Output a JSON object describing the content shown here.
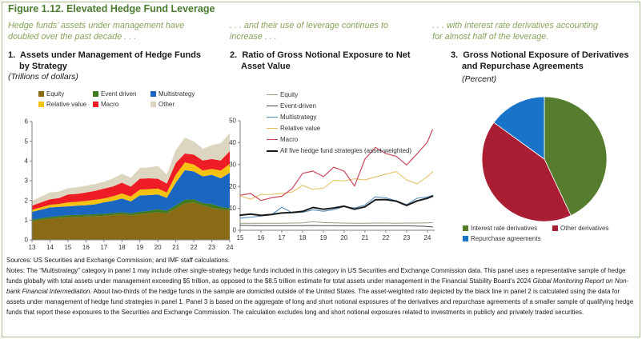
{
  "figure": {
    "title": "Figure 1.12. Elevated Hedge Fund Leverage",
    "accent_color": "#4a7c2f",
    "subtitle_color": "#87a35b",
    "border_color": "#a9bf8e"
  },
  "panels": [
    {
      "subtitle1": "Hedge funds’ assets under management have",
      "subtitle2": "doubled over the past decade . . .",
      "number": "1.",
      "heading1": "Assets under Management of Hedge Funds",
      "heading2": "by Strategy",
      "unit": "(Trillions of dollars)"
    },
    {
      "subtitle1": ". . . and their use of leverage continues to",
      "subtitle2": "increase . . .",
      "number": "2.",
      "heading1": "Ratio of Gross Notional Exposure to Net",
      "heading2": "Asset Value",
      "unit": ""
    },
    {
      "subtitle1": ". . . with interest rate derivatives accounting",
      "subtitle2": "for almost half of the leverage.",
      "number": "3.",
      "heading1": "Gross Notional Exposure of Derivatives",
      "heading2": "and Repurchase Agreements",
      "unit": "(Percent)"
    }
  ],
  "chart_data": [
    {
      "type": "area",
      "stacked": true,
      "title": "Assets under Management of Hedge Funds by Strategy",
      "ylabel": "Trillions of dollars",
      "ylim": [
        0,
        6
      ],
      "yticks": [
        0,
        1,
        2,
        3,
        4,
        5,
        6
      ],
      "xlim": [
        2013,
        2024
      ],
      "xticks": [
        2013,
        2014,
        2015,
        2016,
        2017,
        2018,
        2019,
        2020,
        2021,
        2022,
        2023,
        2024
      ],
      "xtick_labels": [
        "13",
        "14",
        "15",
        "16",
        "17",
        "18",
        "19",
        "20",
        "21",
        "22",
        "23",
        "24"
      ],
      "x": [
        2013,
        2013.5,
        2014,
        2014.5,
        2015,
        2015.5,
        2016,
        2016.5,
        2017,
        2017.5,
        2018,
        2018.5,
        2019,
        2019.5,
        2020,
        2020.5,
        2021,
        2021.5,
        2022,
        2022.5,
        2023,
        2023.5,
        2024
      ],
      "series": [
        {
          "name": "Equity",
          "color": "#8a6b15",
          "values": [
            0.95,
            1.02,
            1.08,
            1.12,
            1.15,
            1.17,
            1.18,
            1.2,
            1.22,
            1.26,
            1.3,
            1.25,
            1.3,
            1.35,
            1.4,
            1.35,
            1.6,
            1.85,
            1.9,
            1.75,
            1.62,
            1.55,
            1.5
          ]
        },
        {
          "name": "Event driven",
          "color": "#3f7a1e",
          "values": [
            0.07,
            0.08,
            0.08,
            0.09,
            0.1,
            0.1,
            0.1,
            0.1,
            0.1,
            0.1,
            0.1,
            0.1,
            0.12,
            0.12,
            0.15,
            0.13,
            0.15,
            0.18,
            0.15,
            0.12,
            0.2,
            0.12,
            0.1
          ]
        },
        {
          "name": "Multistrategy",
          "color": "#1a66c0",
          "values": [
            0.4,
            0.43,
            0.48,
            0.46,
            0.45,
            0.46,
            0.47,
            0.5,
            0.58,
            0.62,
            0.7,
            0.6,
            0.83,
            0.8,
            0.75,
            0.65,
            1.15,
            1.5,
            1.42,
            1.35,
            1.48,
            1.45,
            1.8
          ]
        },
        {
          "name": "Relative value",
          "color": "#f5c211",
          "values": [
            0.1,
            0.12,
            0.14,
            0.15,
            0.2,
            0.2,
            0.23,
            0.23,
            0.2,
            0.23,
            0.25,
            0.25,
            0.3,
            0.3,
            0.3,
            0.28,
            0.4,
            0.4,
            0.35,
            0.3,
            0.3,
            0.4,
            0.45
          ]
        },
        {
          "name": "Macro",
          "color": "#ee1c24",
          "values": [
            0.21,
            0.25,
            0.28,
            0.3,
            0.4,
            0.4,
            0.42,
            0.45,
            0.5,
            0.5,
            0.55,
            0.5,
            0.55,
            0.55,
            0.5,
            0.45,
            0.6,
            0.45,
            0.5,
            0.5,
            0.5,
            0.5,
            0.65
          ]
        },
        {
          "name": "Other",
          "color": "#dcd6c0",
          "values": [
            0.24,
            0.3,
            0.35,
            0.33,
            0.32,
            0.33,
            0.35,
            0.35,
            0.35,
            0.4,
            0.45,
            0.45,
            0.55,
            0.55,
            0.65,
            0.45,
            0.65,
            0.8,
            0.68,
            0.6,
            0.7,
            0.88,
            0.9
          ]
        }
      ]
    },
    {
      "type": "line",
      "title": "Ratio of Gross Notional Exposure to Net Asset Value",
      "ylim": [
        0,
        50
      ],
      "yticks": [
        0,
        10,
        20,
        30,
        40,
        50
      ],
      "xlim": [
        2015,
        2024.35
      ],
      "xticks": [
        2015,
        2016,
        2017,
        2018,
        2019,
        2020,
        2021,
        2022,
        2023,
        2024
      ],
      "xtick_labels": [
        "15",
        "16",
        "17",
        "18",
        "19",
        "20",
        "21",
        "22",
        "23",
        "24"
      ],
      "x": [
        2015,
        2015.5,
        2016,
        2016.5,
        2017,
        2017.5,
        2018,
        2018.5,
        2019,
        2019.5,
        2020,
        2020.5,
        2021,
        2021.5,
        2022,
        2022.5,
        2023,
        2023.5,
        2024,
        2024.25
      ],
      "series": [
        {
          "name": "Equity",
          "color": "#9a9a85",
          "width": 1,
          "values": [
            3.2,
            3.2,
            3.2,
            3.2,
            3.2,
            3.3,
            3.4,
            3.9,
            3.5,
            3.4,
            3.3,
            3.2,
            3.2,
            3.3,
            3.3,
            3.2,
            3.3,
            3.3,
            3.4,
            3.5
          ]
        },
        {
          "name": "Event-driven",
          "color": "#4a4a42",
          "width": 1,
          "values": [
            2.3,
            2.2,
            2.1,
            2.1,
            2.1,
            2.1,
            2.1,
            2.2,
            2.1,
            2.1,
            2.0,
            2.0,
            2.0,
            2.0,
            2.0,
            2.0,
            2.0,
            1.9,
            1.7,
            1.5
          ]
        },
        {
          "name": "Multistrategy",
          "color": "#4a88b8",
          "width": 1,
          "values": [
            5.5,
            6.0,
            6.5,
            7.0,
            10.5,
            8.0,
            8.2,
            9.3,
            8.7,
            9.4,
            10.8,
            10.2,
            11.5,
            15.3,
            14.8,
            13.5,
            11.7,
            14.6,
            15.2,
            16.0
          ]
        },
        {
          "name": "Relative value",
          "color": "#e3bd5a",
          "width": 1,
          "values": [
            15.7,
            14.2,
            16.3,
            16.4,
            16.8,
            17.5,
            20.5,
            18.7,
            19.2,
            22.8,
            22.5,
            23.5,
            23.0,
            24.3,
            25.6,
            26.8,
            23.0,
            21.2,
            24.5,
            26.7
          ]
        },
        {
          "name": "Macro",
          "color": "#c8475c",
          "width": 1.2,
          "values": [
            16.0,
            16.8,
            13.6,
            14.8,
            15.5,
            19.0,
            26.0,
            27.0,
            24.5,
            28.8,
            27.0,
            20.2,
            32.5,
            37.8,
            35.0,
            33.8,
            29.8,
            34.8,
            40.3,
            46.0
          ]
        },
        {
          "name": "All five hedge fund strategies (asset-weighted)",
          "color": "#1a1a1a",
          "width": 2,
          "values": [
            6.9,
            7.4,
            6.8,
            7.2,
            7.9,
            8.1,
            8.6,
            10.4,
            9.6,
            10.2,
            11.0,
            9.6,
            10.7,
            13.9,
            14.0,
            13.3,
            11.3,
            13.4,
            14.6,
            15.6
          ]
        }
      ]
    },
    {
      "type": "pie",
      "title": "Gross Notional Exposure of Derivatives and Repurchase Agreements",
      "unit": "Percent",
      "start_angle_deg": 0,
      "direction": "clockwise",
      "slices": [
        {
          "label": "Interest rate derivatives",
          "color": "#567d2e",
          "value": 43
        },
        {
          "label": "Other derivatives",
          "color": "#a91e32",
          "value": 42
        },
        {
          "label": "Repurchase agreements",
          "color": "#1973c8",
          "value": 15
        }
      ]
    }
  ],
  "footer": {
    "sources": "Sources: US Securities and Exchange Commission; and IMF staff calculations.",
    "notes_pre": "Notes: The “Multistrategy” category in panel 1 may include other single-strategy hedge funds included in this category in US Securities and Exchange Commission data. This panel uses a representative sample of hedge funds globally with total assets under management exceeding $5 trillion, as opposed to the $8.5 trillion estimate for total assets under management in the Financial Stability Board’s 2024 ",
    "notes_italic": "Global Monitoring Report on Non-bank Financial Intermediation",
    "notes_post": ". About two-thirds of the hedge funds in the sample are domiciled outside of the United States. The asset-weighted ratio depicted by the black line in panel 2 is calculated using the data for assets under management of hedge fund strategies in panel 1. Panel 3 is based on the aggregate of long and short notional exposures of the derivatives and repurchase agreements of a smaller sample of qualifying hedge funds that report these exposures to the Securities and Exchange Commission. The calculation excludes long and short notional exposures related to investments in publicly and privately traded securities."
  }
}
